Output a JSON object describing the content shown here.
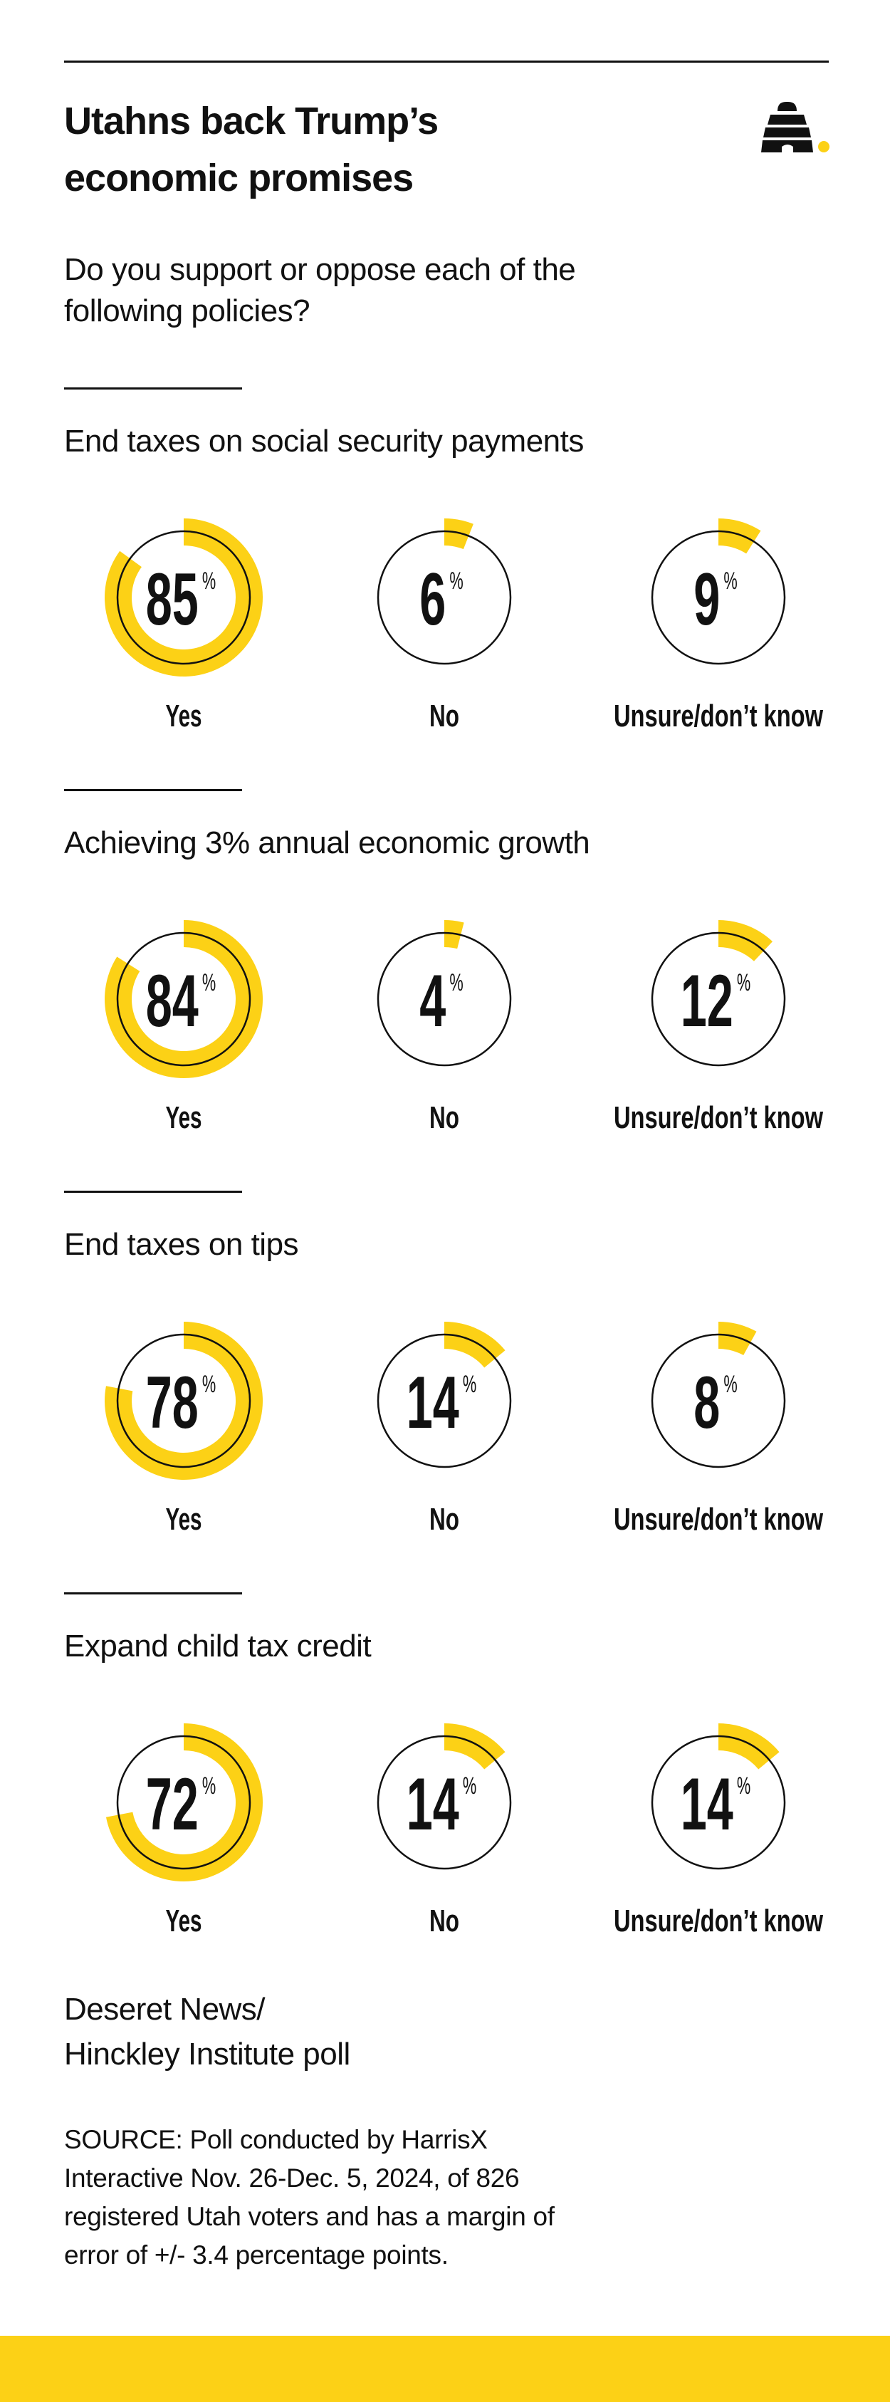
{
  "header": {
    "title_lines": [
      "Utahns back Trump’s",
      "economic promises"
    ],
    "logo": "deseret-news-beehive-logo",
    "question_lines": [
      "Do you support or oppose each of the",
      "following policies?"
    ]
  },
  "colors": {
    "accent": "#FCD116",
    "ink": "#111111"
  },
  "chart_data": {
    "type": "donut",
    "unit": "%",
    "categories": [
      "Yes",
      "No",
      "Unsure/don’t know"
    ],
    "questions": [
      {
        "title": "End taxes on social security payments",
        "values": [
          85,
          6,
          9
        ]
      },
      {
        "title": "Achieving 3% annual economic growth",
        "values": [
          84,
          4,
          12
        ]
      },
      {
        "title": "End taxes on tips",
        "values": [
          78,
          14,
          8
        ]
      },
      {
        "title": "Expand child tax credit",
        "values": [
          72,
          14,
          14
        ]
      }
    ]
  },
  "footer": {
    "credit_lines": [
      "Deseret News/",
      "Hinckley Institute poll"
    ],
    "source_lines": [
      "SOURCE: Poll conducted by HarrisX",
      "Interactive Nov. 26-Dec. 5, 2024, of 826",
      "registered Utah voters and has a margin of",
      "error of +/- 3.4 percentage points."
    ]
  }
}
